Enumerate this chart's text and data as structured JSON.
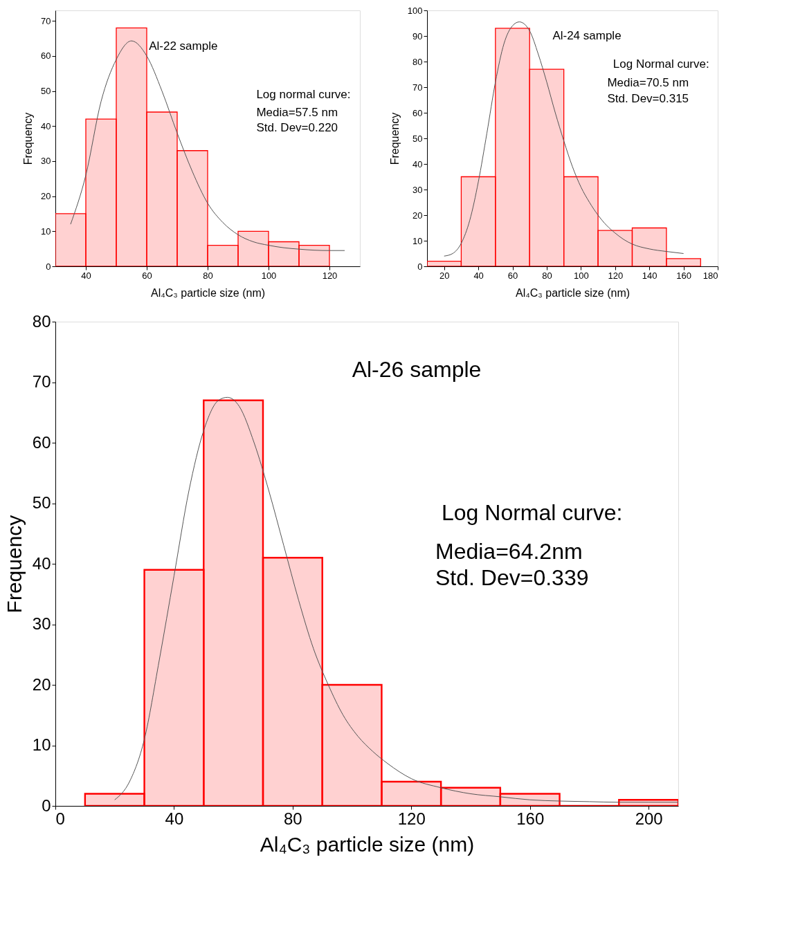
{
  "chart_data": [
    {
      "type": "histogram",
      "xlabel": "Al₄C₃ particle size (nm)",
      "ylabel": "Frequency",
      "xlim": [
        30,
        130
      ],
      "xticks": [
        40,
        60,
        80,
        100,
        120
      ],
      "ylim": [
        0,
        73
      ],
      "yticks": [
        0,
        10,
        20,
        30,
        40,
        50,
        60,
        70
      ],
      "grid": false,
      "annotations": [
        "Al-22 sample",
        "Log normal curve:",
        "Media=57.5 nm",
        "Std. Dev=0.220"
      ],
      "series": [
        {
          "type": "histogram",
          "color": "#ff0000",
          "bins": [
            30,
            40,
            50,
            60,
            70,
            80,
            90,
            100,
            110,
            120
          ],
          "values": [
            15,
            42,
            68,
            44,
            33,
            6,
            10,
            7,
            6
          ]
        },
        {
          "type": "line",
          "color": "#555555",
          "x": [
            35,
            40,
            45,
            50,
            55,
            60,
            65,
            70,
            75,
            80,
            85,
            90,
            95,
            100,
            105,
            110,
            115,
            120,
            125
          ],
          "values": [
            12,
            26,
            47,
            59,
            64.3,
            60,
            50,
            38,
            27,
            18,
            12.5,
            9,
            7,
            6,
            5.3,
            4.9,
            4.6,
            4.5,
            4.5
          ]
        }
      ]
    },
    {
      "type": "histogram",
      "xlabel": "Al₄C₃ particle size (nm)",
      "ylabel": "Frequency",
      "xlim": [
        10,
        180
      ],
      "xticks": [
        20,
        40,
        60,
        80,
        100,
        120,
        140,
        160,
        180
      ],
      "ylim": [
        0,
        100
      ],
      "yticks": [
        0,
        10,
        20,
        30,
        40,
        50,
        60,
        70,
        80,
        90,
        100
      ],
      "grid": false,
      "annotations": [
        "Al-24 sample",
        "Log Normal curve:",
        "Media=70.5 nm",
        "Std. Dev=0.315"
      ],
      "series": [
        {
          "type": "histogram",
          "color": "#ff0000",
          "bins": [
            10,
            30,
            50,
            70,
            90,
            110,
            130,
            150,
            170
          ],
          "values": [
            2,
            35,
            93,
            77,
            35,
            14,
            15,
            3
          ]
        },
        {
          "type": "line",
          "color": "#555555",
          "x": [
            20,
            25,
            30,
            35,
            40,
            45,
            50,
            55,
            60,
            64,
            70,
            75,
            80,
            85,
            90,
            95,
            100,
            105,
            110,
            115,
            120,
            125,
            130,
            140,
            150,
            160
          ],
          "values": [
            4,
            5,
            9,
            18,
            33,
            52,
            72,
            87,
            94,
            95.5,
            92,
            83,
            72,
            60,
            49,
            39,
            31,
            25,
            20,
            16,
            13,
            10.5,
            8.7,
            6.8,
            5.8,
            5
          ]
        }
      ]
    },
    {
      "type": "histogram",
      "xlabel": "Al₄C₃ particle size (nm)",
      "ylabel": "Frequency",
      "xlim": [
        0,
        210
      ],
      "xticks": [
        0,
        40,
        80,
        120,
        160,
        200
      ],
      "ylim": [
        0,
        80
      ],
      "yticks": [
        0,
        10,
        20,
        30,
        40,
        50,
        60,
        70,
        80
      ],
      "grid": false,
      "annotations": [
        "Al-26 sample",
        "Log Normal curve:",
        "Media=64.2nm",
        "Std. Dev=0.339"
      ],
      "series": [
        {
          "type": "histogram",
          "color": "#ff0000",
          "bins": [
            10,
            30,
            50,
            70,
            90,
            110,
            130,
            150,
            170,
            190,
            210
          ],
          "values": [
            2,
            39,
            67,
            41,
            20,
            4,
            3,
            2,
            0,
            1
          ]
        },
        {
          "type": "line",
          "color": "#555555",
          "x": [
            20,
            25,
            30,
            35,
            40,
            45,
            50,
            55,
            58,
            62,
            67,
            72,
            77,
            82,
            87,
            92,
            97,
            102,
            107,
            112,
            120,
            130,
            140,
            150,
            160,
            170,
            180,
            190,
            200,
            210
          ],
          "values": [
            1,
            4,
            11,
            24,
            38,
            52,
            62,
            67,
            67.5,
            66,
            60,
            52,
            43,
            34,
            26,
            20,
            15,
            11.5,
            9,
            7,
            4.5,
            3,
            2,
            1.5,
            1,
            0.8,
            0.7,
            0.6,
            0.6,
            0.6
          ]
        }
      ]
    }
  ]
}
